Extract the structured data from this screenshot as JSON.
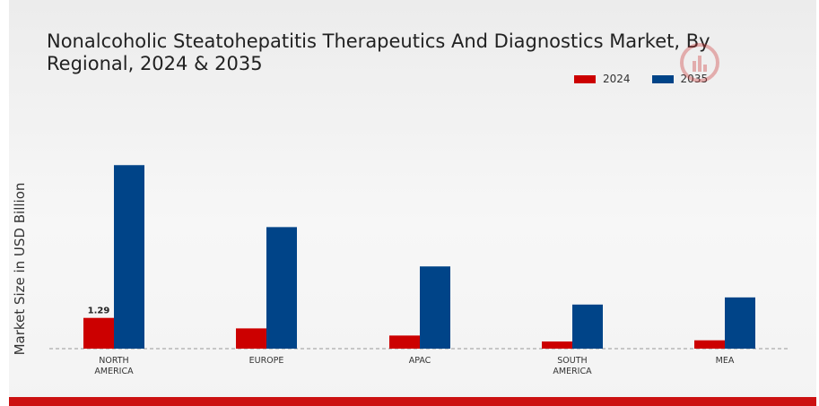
{
  "chart_data": {
    "type": "bar",
    "title": "Nonalcoholic Steatohepatitis Therapeutics And Diagnostics Market, By Regional, 2024 & 2035",
    "ylabel": "Market Size in USD Billion",
    "categories": [
      [
        "NORTH",
        "AMERICA"
      ],
      [
        "EUROPE"
      ],
      [
        "APAC"
      ],
      [
        "SOUTH",
        "AMERICA"
      ],
      [
        "MEA"
      ]
    ],
    "series": [
      {
        "name": "2024",
        "color": "#cc0000",
        "values": [
          1.29,
          0.85,
          0.55,
          0.3,
          0.35
        ]
      },
      {
        "name": "2035",
        "color": "#004488",
        "values": [
          7.7,
          5.1,
          3.45,
          1.85,
          2.15
        ]
      }
    ],
    "data_labels": [
      {
        "series": 0,
        "index": 0,
        "text": "1.29"
      }
    ],
    "ylim": [
      0,
      8.8
    ],
    "grid": false,
    "legend_position": "top-right"
  }
}
